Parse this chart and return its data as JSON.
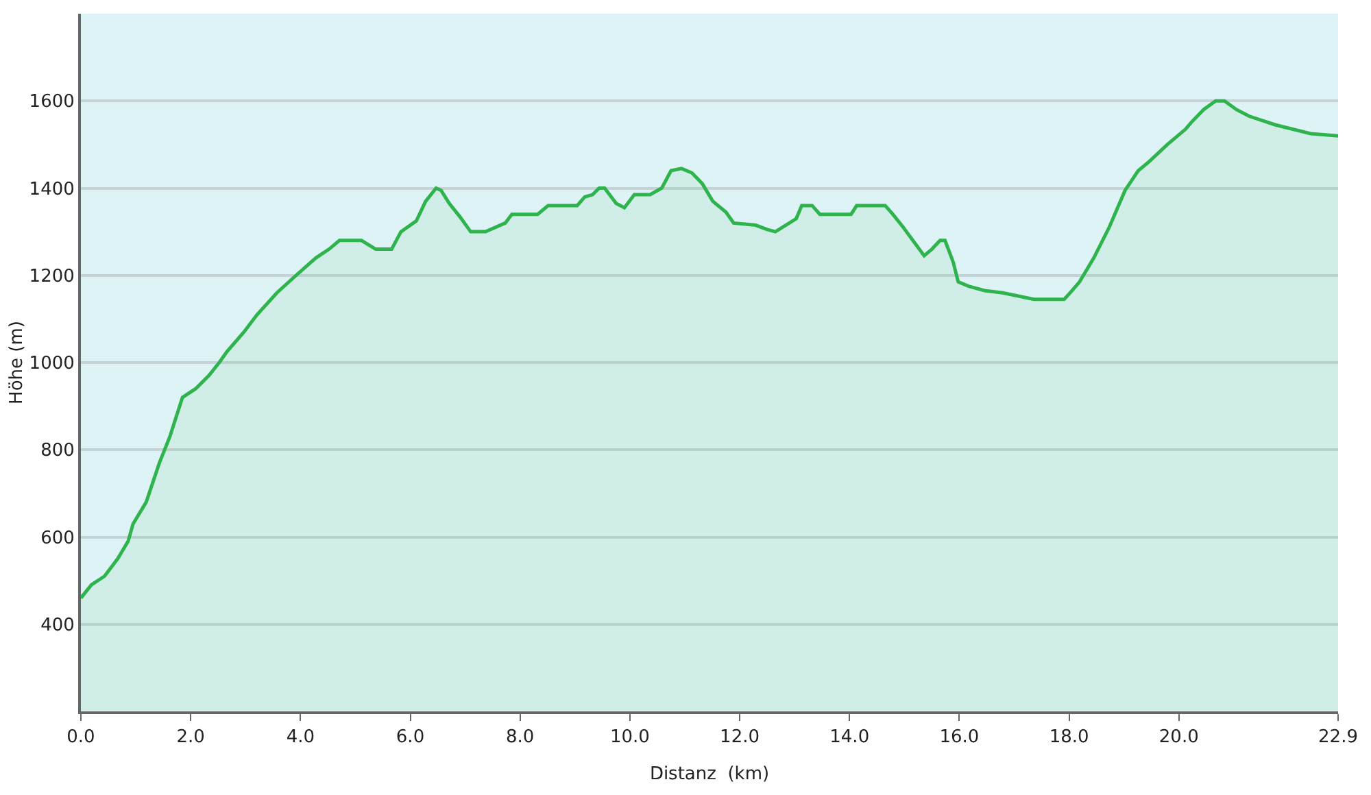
{
  "chart_data": {
    "type": "area",
    "xlabel": "Distanz  (km)",
    "ylabel": "Höhe (m)",
    "x": [
      0,
      0.19,
      0.43,
      0.67,
      0.86,
      0.95,
      1.19,
      1.43,
      1.62,
      1.85,
      2.09,
      2.33,
      2.52,
      2.66,
      2.97,
      3.21,
      3.57,
      3.92,
      4.28,
      4.52,
      4.71,
      5.11,
      5.37,
      5.66,
      5.83,
      6.11,
      6.28,
      6.47,
      6.56,
      6.71,
      6.9,
      7.1,
      7.37,
      7.73,
      7.85,
      8.32,
      8.51,
      9.04,
      9.18,
      9.32,
      9.44,
      9.54,
      9.75,
      9.9,
      10.08,
      10.37,
      10.58,
      10.75,
      10.94,
      11.13,
      11.32,
      11.51,
      11.75,
      11.89,
      12.29,
      12.5,
      12.65,
      13.03,
      13.13,
      13.32,
      13.46,
      14.03,
      14.13,
      14.65,
      14.79,
      14.98,
      15.36,
      15.5,
      15.65,
      15.74,
      15.89,
      15.98,
      16.17,
      16.46,
      16.79,
      17.36,
      17.91,
      18.02,
      18.19,
      18.45,
      18.73,
      19.02,
      19.26,
      19.45,
      19.79,
      20.12,
      20.22,
      20.45,
      20.67,
      20.83,
      21.05,
      21.28,
      21.76,
      22.4,
      22.9
    ],
    "series": [
      {
        "color": "#2eb34d",
        "values": [
          460,
          490,
          510,
          550,
          590,
          630,
          680,
          770,
          830,
          920,
          940,
          970,
          1000,
          1025,
          1070,
          1110,
          1160,
          1200,
          1240,
          1260,
          1280,
          1280,
          1260,
          1260,
          1300,
          1325,
          1370,
          1400,
          1395,
          1365,
          1335,
          1300,
          1300,
          1320,
          1340,
          1340,
          1360,
          1360,
          1380,
          1385,
          1400,
          1400,
          1365,
          1355,
          1385,
          1385,
          1400,
          1440,
          1445,
          1435,
          1410,
          1370,
          1345,
          1320,
          1315,
          1305,
          1300,
          1330,
          1360,
          1360,
          1340,
          1340,
          1360,
          1360,
          1340,
          1310,
          1245,
          1260,
          1280,
          1280,
          1230,
          1185,
          1175,
          1165,
          1160,
          1145,
          1145,
          1160,
          1185,
          1240,
          1310,
          1395,
          1440,
          1460,
          1500,
          1535,
          1550,
          1580,
          1600,
          1600,
          1580,
          1565,
          1545,
          1525,
          1520
        ]
      }
    ],
    "xlim": [
      0,
      22.9
    ],
    "ylim": [
      200,
      1800
    ],
    "xticks": [
      {
        "value": 0,
        "label": "0.0"
      },
      {
        "value": 2,
        "label": "2.0"
      },
      {
        "value": 4,
        "label": "4.0"
      },
      {
        "value": 6,
        "label": "6.0"
      },
      {
        "value": 8,
        "label": "8.0"
      },
      {
        "value": 10,
        "label": "10.0"
      },
      {
        "value": 12,
        "label": "12.0"
      },
      {
        "value": 14,
        "label": "14.0"
      },
      {
        "value": 16,
        "label": "16.0"
      },
      {
        "value": 18,
        "label": "18.0"
      },
      {
        "value": 20,
        "label": "20.0"
      },
      {
        "value": 22.9,
        "label": "22.9"
      }
    ],
    "yticks": [
      400,
      600,
      800,
      1000,
      1200,
      1400,
      1600
    ],
    "grid": "y"
  }
}
